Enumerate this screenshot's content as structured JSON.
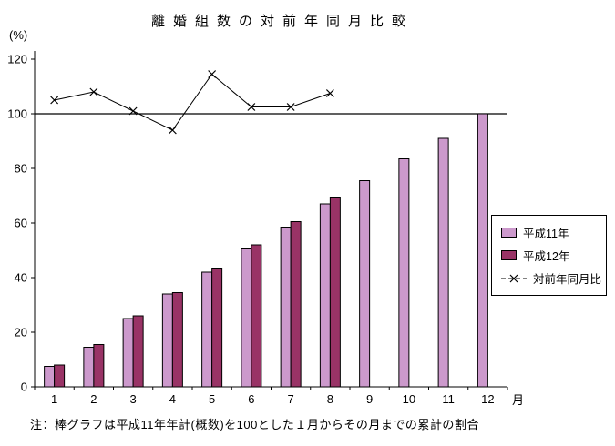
{
  "page": {
    "title": "離婚組数の対前年同月比較",
    "y_unit": "(%)",
    "x_unit": "月",
    "note": "注：棒グラフは平成11年年計(概数)を100とした１月からその月までの累計の割合"
  },
  "legend": {
    "items": [
      {
        "label": "平成11年",
        "swatch": "bar-light"
      },
      {
        "label": "平成12年",
        "swatch": "bar-dark"
      },
      {
        "label": "対前年同月比",
        "swatch": "line-x-marker"
      }
    ]
  },
  "colors": {
    "h11_fill": "#cc99cc",
    "h12_fill": "#993366",
    "line": "#000000",
    "axis": "#000000",
    "background": "#ffffff"
  },
  "chart_data": {
    "type": "bar",
    "title": "離婚組数の対前年同月比較",
    "categories": [
      "1",
      "2",
      "3",
      "4",
      "5",
      "6",
      "7",
      "8",
      "9",
      "10",
      "11",
      "12"
    ],
    "series": [
      {
        "name": "平成11年",
        "type": "bar",
        "color": "#cc99cc",
        "values": [
          7.5,
          14.5,
          25,
          34,
          42,
          50.5,
          58.5,
          67,
          75.5,
          83.5,
          91,
          100
        ]
      },
      {
        "name": "平成12年",
        "type": "bar",
        "color": "#993366",
        "values": [
          8,
          15.5,
          26,
          34.5,
          43.5,
          52,
          60.5,
          69.5,
          null,
          null,
          null,
          null
        ]
      },
      {
        "name": "対前年同月比",
        "type": "line",
        "color": "#000000",
        "marker": "x",
        "values": [
          105,
          108,
          101,
          94,
          114.5,
          102.5,
          102.5,
          107.5,
          null,
          null,
          null,
          null
        ]
      }
    ],
    "ylim": [
      0,
      120
    ],
    "yticks": [
      0,
      20,
      40,
      60,
      80,
      100,
      120
    ],
    "ylabel": "(%)",
    "xlabel": "月",
    "reference_line": 100,
    "grid": false,
    "legend_position": "right-middle"
  }
}
